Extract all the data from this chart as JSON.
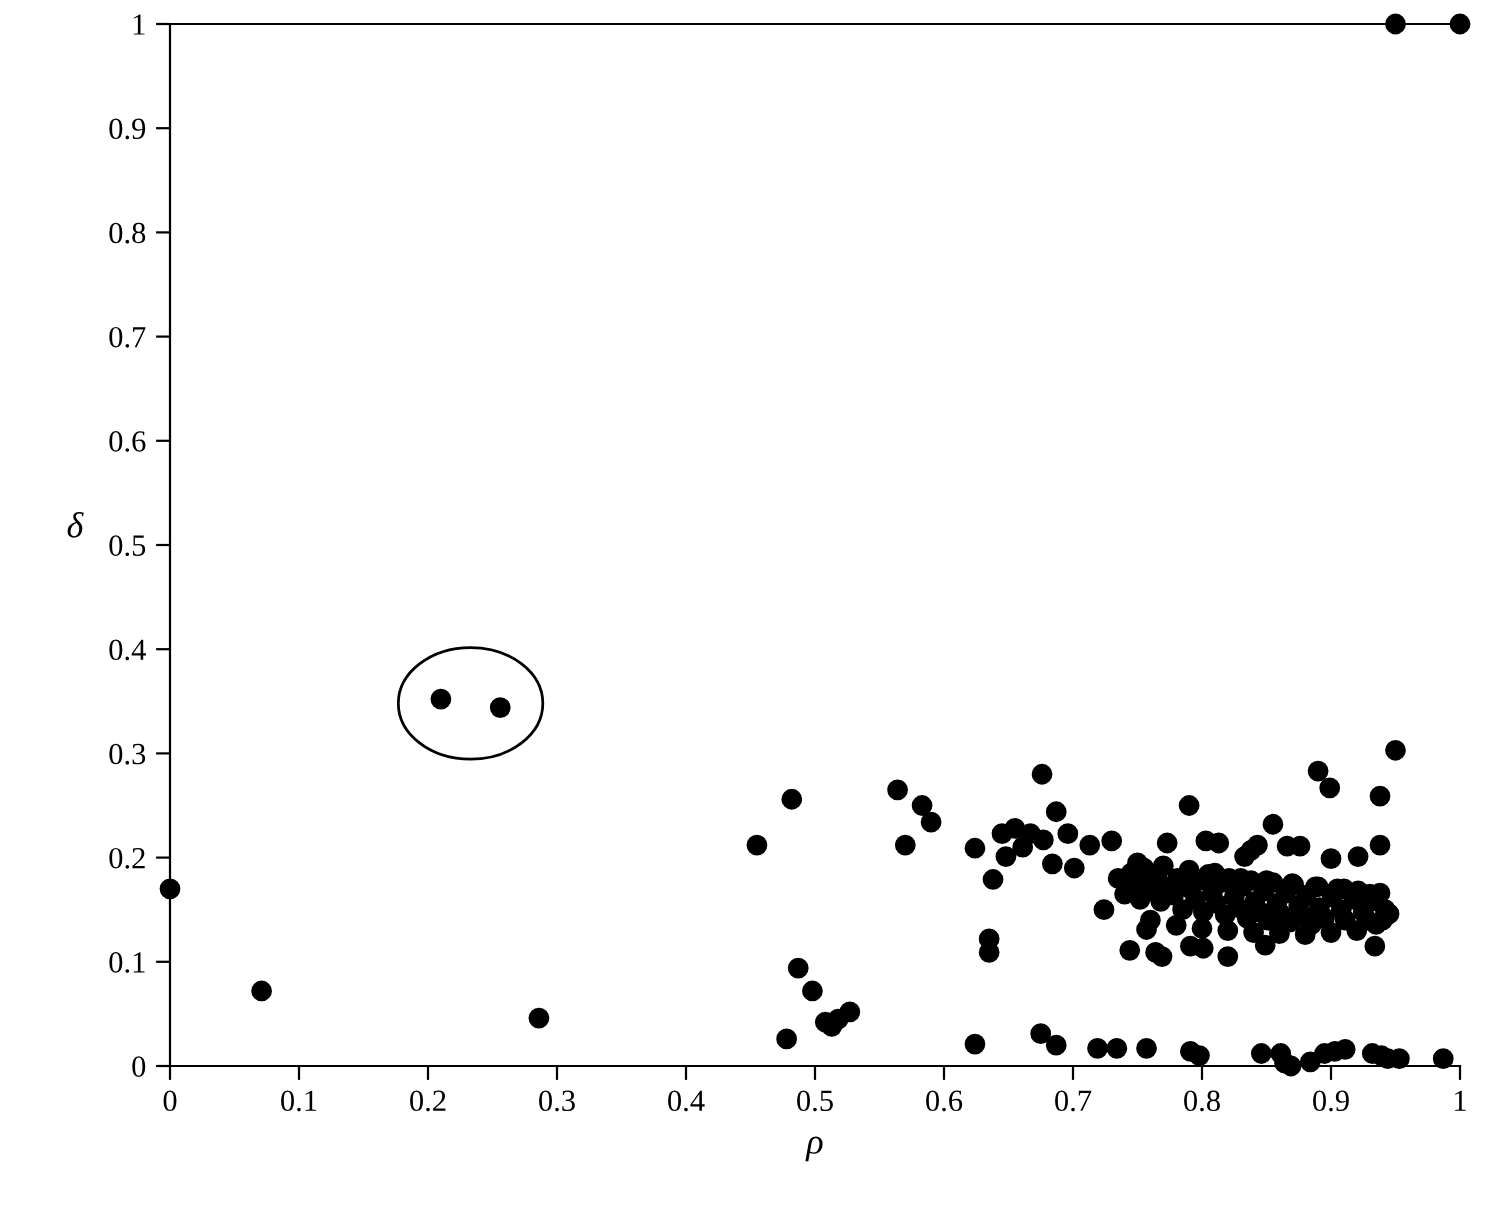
{
  "chart_data": {
    "type": "scatter",
    "xlabel": "ρ",
    "ylabel": "δ",
    "xlim": [
      0,
      1
    ],
    "ylim": [
      0,
      1
    ],
    "xticks": [
      0,
      0.1,
      0.2,
      0.3,
      0.4,
      0.5,
      0.6,
      0.7,
      0.8,
      0.9,
      1
    ],
    "yticks": [
      0,
      0.1,
      0.2,
      0.3,
      0.4,
      0.5,
      0.6,
      0.7,
      0.8,
      0.9,
      1
    ],
    "grid": false,
    "legend": false,
    "marker": "circle",
    "series": [
      {
        "color": "#000000",
        "x": [
          0,
          0.071,
          0.21,
          0.256,
          0.286,
          0.455,
          0.482,
          0.478,
          0.487,
          0.498,
          0.508,
          0.513,
          0.518,
          0.527,
          0.564,
          0.57,
          0.583,
          0.59,
          0.624,
          0.638,
          0.635,
          0.635,
          0.676,
          0.687,
          0.645,
          0.655,
          0.667,
          0.677,
          0.648,
          0.661,
          0.684,
          0.696,
          0.701,
          0.713,
          0.73,
          0.79,
          0.855,
          0.89,
          0.899,
          0.95,
          0.938,
          0.938,
          0.921,
          0.9,
          0.773,
          0.803,
          0.813,
          0.838,
          0.843,
          0.866,
          0.876,
          0.833,
          0.724,
          0.744,
          0.757,
          0.764,
          0.769,
          0.791,
          0.801,
          0.82,
          0.849,
          0.934,
          0.624,
          0.675,
          0.687,
          0.719,
          0.734,
          0.757,
          0.791,
          0.798,
          0.846,
          0.861,
          0.869,
          0.864,
          0.884,
          0.895,
          0.903,
          0.911,
          0.932,
          0.939,
          0.944,
          0.953,
          0.987,
          0.95,
          1.0,
          0.735,
          0.74,
          0.745,
          0.748,
          0.752,
          0.755,
          0.758,
          0.762,
          0.765,
          0.768,
          0.775,
          0.778,
          0.781,
          0.785,
          0.791,
          0.795,
          0.798,
          0.801,
          0.805,
          0.808,
          0.811,
          0.815,
          0.818,
          0.821,
          0.825,
          0.828,
          0.831,
          0.835,
          0.838,
          0.841,
          0.845,
          0.848,
          0.851,
          0.855,
          0.858,
          0.861,
          0.865,
          0.868,
          0.871,
          0.875,
          0.878,
          0.881,
          0.885,
          0.888,
          0.891,
          0.895,
          0.901,
          0.905,
          0.908,
          0.911,
          0.918,
          0.921,
          0.925,
          0.928,
          0.931,
          0.935,
          0.938,
          0.942,
          0.945,
          0.75,
          0.77,
          0.79,
          0.81,
          0.83,
          0.85,
          0.87,
          0.89,
          0.91,
          0.93,
          0.76,
          0.78,
          0.8,
          0.82,
          0.84,
          0.86,
          0.88,
          0.9,
          0.92,
          0.94
        ],
        "values": [
          0.17,
          0.072,
          0.352,
          0.344,
          0.046,
          0.212,
          0.256,
          0.026,
          0.094,
          0.072,
          0.042,
          0.038,
          0.045,
          0.052,
          0.265,
          0.212,
          0.25,
          0.234,
          0.209,
          0.179,
          0.122,
          0.109,
          0.28,
          0.244,
          0.223,
          0.228,
          0.223,
          0.217,
          0.201,
          0.21,
          0.194,
          0.223,
          0.19,
          0.212,
          0.216,
          0.25,
          0.232,
          0.283,
          0.267,
          0.303,
          0.259,
          0.212,
          0.201,
          0.199,
          0.214,
          0.216,
          0.214,
          0.207,
          0.212,
          0.211,
          0.211,
          0.201,
          0.15,
          0.111,
          0.131,
          0.109,
          0.105,
          0.115,
          0.113,
          0.105,
          0.116,
          0.115,
          0.021,
          0.031,
          0.02,
          0.017,
          0.017,
          0.017,
          0.014,
          0.01,
          0.012,
          0.012,
          0.0,
          0.003,
          0.004,
          0.012,
          0.014,
          0.016,
          0.012,
          0.01,
          0.007,
          0.007,
          0.007,
          1.0,
          1.0,
          0.18,
          0.165,
          0.185,
          0.172,
          0.16,
          0.19,
          0.176,
          0.168,
          0.182,
          0.158,
          0.172,
          0.164,
          0.18,
          0.15,
          0.17,
          0.16,
          0.178,
          0.148,
          0.184,
          0.166,
          0.156,
          0.176,
          0.145,
          0.18,
          0.162,
          0.152,
          0.172,
          0.142,
          0.178,
          0.158,
          0.148,
          0.168,
          0.14,
          0.176,
          0.156,
          0.146,
          0.166,
          0.138,
          0.174,
          0.154,
          0.144,
          0.164,
          0.136,
          0.172,
          0.152,
          0.142,
          0.162,
          0.17,
          0.15,
          0.14,
          0.16,
          0.168,
          0.148,
          0.14,
          0.158,
          0.136,
          0.166,
          0.15,
          0.146,
          0.195,
          0.192,
          0.188,
          0.185,
          0.18,
          0.178,
          0.175,
          0.172,
          0.17,
          0.165,
          0.14,
          0.135,
          0.132,
          0.13,
          0.128,
          0.127,
          0.126,
          0.128,
          0.13,
          0.14
        ]
      }
    ]
  }
}
